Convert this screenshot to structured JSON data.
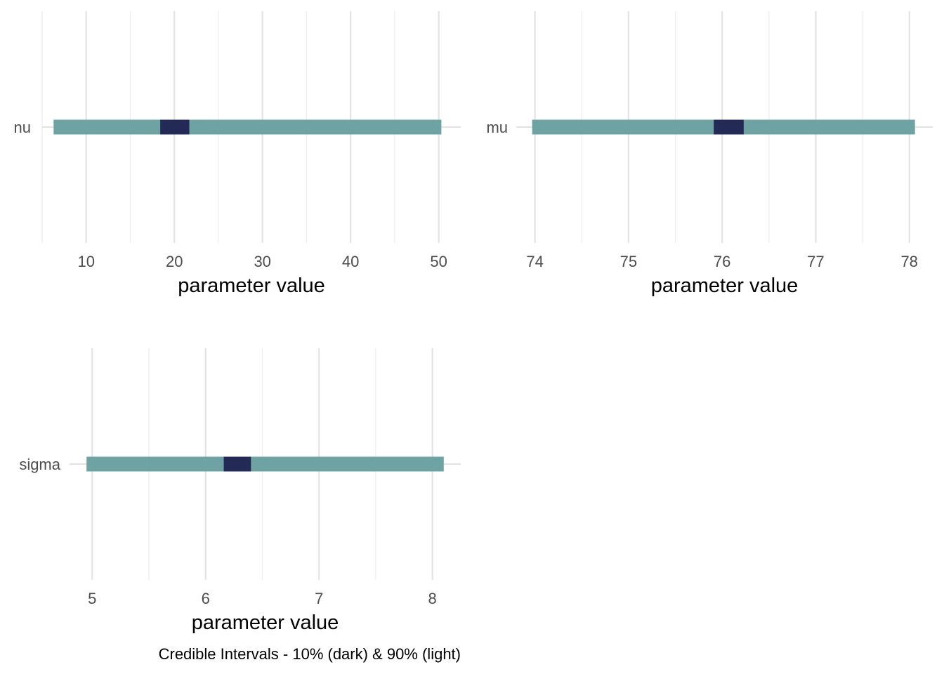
{
  "colors": {
    "outer_interval": "#6fa3a3",
    "inner_interval": "#242a56",
    "grid_major": "#e3e3e3",
    "grid_minor": "#ededed",
    "text_axis": "#4d4d4d"
  },
  "caption": "Credible Intervals - 10% (dark) & 90% (light)",
  "chart_data": [
    {
      "type": "interval",
      "parameter": "nu",
      "xlabel": "parameter value",
      "xlim": [
        5.0,
        52.5
      ],
      "x_ticks": [
        10,
        20,
        30,
        40,
        50
      ],
      "x_minor": [
        5,
        15,
        25,
        35,
        45
      ],
      "outer_interval": [
        6.3,
        50.3
      ],
      "inner_interval": [
        18.4,
        21.7
      ],
      "grid": true
    },
    {
      "type": "interval",
      "parameter": "mu",
      "xlabel": "parameter value",
      "xlim": [
        73.8,
        78.25
      ],
      "x_ticks": [
        74,
        75,
        76,
        77,
        78
      ],
      "x_minor": [
        74.5,
        75.5,
        76.5,
        77.5
      ],
      "outer_interval": [
        73.97,
        78.06
      ],
      "inner_interval": [
        75.91,
        76.23
      ],
      "grid": true
    },
    {
      "type": "interval",
      "parameter": "sigma",
      "xlabel": "parameter value",
      "xlim": [
        4.8,
        8.25
      ],
      "x_ticks": [
        5,
        6,
        7,
        8
      ],
      "x_minor": [
        5.5,
        6.5,
        7.5
      ],
      "outer_interval": [
        4.95,
        8.1
      ],
      "inner_interval": [
        6.16,
        6.4
      ],
      "grid": true
    }
  ]
}
